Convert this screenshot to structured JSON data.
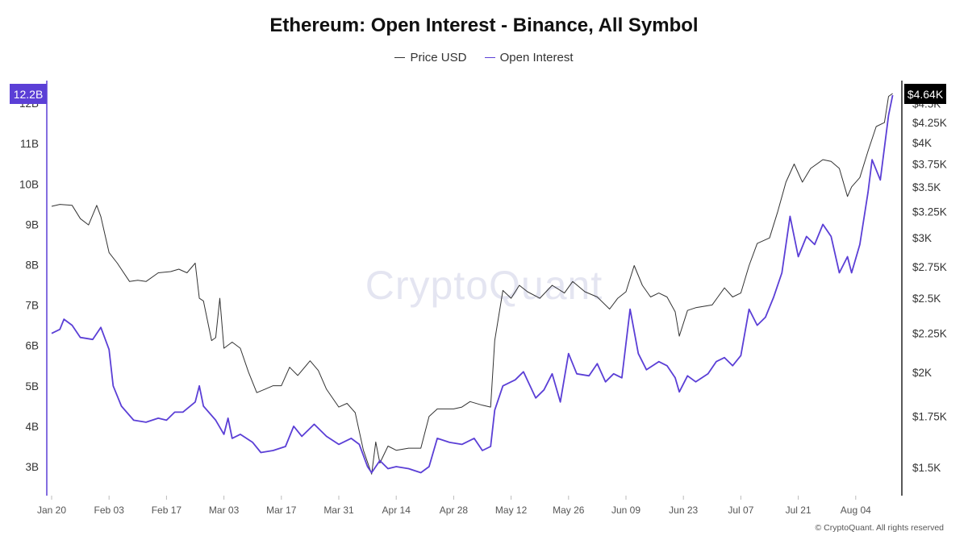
{
  "chart_data": {
    "type": "line",
    "title": "Ethereum: Open Interest - Binance, All Symbol",
    "legend_position": "top-center",
    "grid": false,
    "x_ticks": [
      "Jan 20",
      "Feb 03",
      "Feb 17",
      "Mar 03",
      "Mar 17",
      "Mar 31",
      "Apr 14",
      "Apr 28",
      "May 12",
      "May 26",
      "Jun 09",
      "Jun 23",
      "Jul 07",
      "Jul 21",
      "Aug 04"
    ],
    "x_range": [
      "2025-01-20",
      "2025-08-13"
    ],
    "y_left": {
      "ticks": [
        "3B",
        "4B",
        "5B",
        "6B",
        "7B",
        "8B",
        "9B",
        "10B",
        "11B",
        "12B"
      ],
      "range": [
        2.3,
        12.55
      ],
      "unit": "B"
    },
    "y_right": {
      "ticks": [
        "$1.5K",
        "$1.75K",
        "$2K",
        "$2.25K",
        "$2.5K",
        "$2.75K",
        "$3K",
        "$3.25K",
        "$3.5K",
        "$3.75K",
        "$4K",
        "$4.25K",
        "$4.5K"
      ],
      "scale": "log",
      "range": [
        1410,
        4800
      ]
    },
    "badges": {
      "left_value": "12.2B",
      "right_value": "$4.64K"
    },
    "series": [
      {
        "name": "Price USD",
        "color": "#333333",
        "axis": "right",
        "points": [
          [
            "2025-01-20",
            3300
          ],
          [
            "2025-01-22",
            3320
          ],
          [
            "2025-01-25",
            3310
          ],
          [
            "2025-01-27",
            3180
          ],
          [
            "2025-01-29",
            3120
          ],
          [
            "2025-01-31",
            3310
          ],
          [
            "2025-02-01",
            3200
          ],
          [
            "2025-02-03",
            2870
          ],
          [
            "2025-02-05",
            2780
          ],
          [
            "2025-02-08",
            2630
          ],
          [
            "2025-02-10",
            2640
          ],
          [
            "2025-02-12",
            2630
          ],
          [
            "2025-02-15",
            2700
          ],
          [
            "2025-02-18",
            2710
          ],
          [
            "2025-02-20",
            2730
          ],
          [
            "2025-02-22",
            2700
          ],
          [
            "2025-02-24",
            2780
          ],
          [
            "2025-02-25",
            2500
          ],
          [
            "2025-02-26",
            2480
          ],
          [
            "2025-02-28",
            2200
          ],
          [
            "2025-03-01",
            2220
          ],
          [
            "2025-03-02",
            2500
          ],
          [
            "2025-03-03",
            2150
          ],
          [
            "2025-03-05",
            2190
          ],
          [
            "2025-03-07",
            2150
          ],
          [
            "2025-03-09",
            2000
          ],
          [
            "2025-03-11",
            1880
          ],
          [
            "2025-03-13",
            1900
          ],
          [
            "2025-03-15",
            1920
          ],
          [
            "2025-03-17",
            1920
          ],
          [
            "2025-03-19",
            2030
          ],
          [
            "2025-03-21",
            1980
          ],
          [
            "2025-03-24",
            2070
          ],
          [
            "2025-03-26",
            2010
          ],
          [
            "2025-03-28",
            1900
          ],
          [
            "2025-03-31",
            1800
          ],
          [
            "2025-04-02",
            1820
          ],
          [
            "2025-04-04",
            1770
          ],
          [
            "2025-04-06",
            1580
          ],
          [
            "2025-04-08",
            1470
          ],
          [
            "2025-04-09",
            1620
          ],
          [
            "2025-04-10",
            1520
          ],
          [
            "2025-04-12",
            1600
          ],
          [
            "2025-04-14",
            1580
          ],
          [
            "2025-04-17",
            1590
          ],
          [
            "2025-04-20",
            1590
          ],
          [
            "2025-04-22",
            1750
          ],
          [
            "2025-04-24",
            1790
          ],
          [
            "2025-04-28",
            1790
          ],
          [
            "2025-04-30",
            1800
          ],
          [
            "2025-05-02",
            1830
          ],
          [
            "2025-05-05",
            1810
          ],
          [
            "2025-05-07",
            1800
          ],
          [
            "2025-05-08",
            2200
          ],
          [
            "2025-05-10",
            2560
          ],
          [
            "2025-05-12",
            2500
          ],
          [
            "2025-05-14",
            2600
          ],
          [
            "2025-05-16",
            2550
          ],
          [
            "2025-05-19",
            2500
          ],
          [
            "2025-05-22",
            2600
          ],
          [
            "2025-05-25",
            2540
          ],
          [
            "2025-05-27",
            2630
          ],
          [
            "2025-05-30",
            2550
          ],
          [
            "2025-06-02",
            2510
          ],
          [
            "2025-06-05",
            2420
          ],
          [
            "2025-06-07",
            2500
          ],
          [
            "2025-06-09",
            2550
          ],
          [
            "2025-06-11",
            2760
          ],
          [
            "2025-06-13",
            2600
          ],
          [
            "2025-06-15",
            2510
          ],
          [
            "2025-06-17",
            2540
          ],
          [
            "2025-06-19",
            2510
          ],
          [
            "2025-06-21",
            2400
          ],
          [
            "2025-06-22",
            2230
          ],
          [
            "2025-06-24",
            2410
          ],
          [
            "2025-06-26",
            2430
          ],
          [
            "2025-06-30",
            2450
          ],
          [
            "2025-07-03",
            2580
          ],
          [
            "2025-07-05",
            2510
          ],
          [
            "2025-07-07",
            2540
          ],
          [
            "2025-07-09",
            2760
          ],
          [
            "2025-07-11",
            2950
          ],
          [
            "2025-07-14",
            3000
          ],
          [
            "2025-07-16",
            3250
          ],
          [
            "2025-07-18",
            3550
          ],
          [
            "2025-07-20",
            3750
          ],
          [
            "2025-07-22",
            3550
          ],
          [
            "2025-07-24",
            3700
          ],
          [
            "2025-07-27",
            3800
          ],
          [
            "2025-07-29",
            3780
          ],
          [
            "2025-07-31",
            3700
          ],
          [
            "2025-08-02",
            3400
          ],
          [
            "2025-08-03",
            3500
          ],
          [
            "2025-08-05",
            3600
          ],
          [
            "2025-08-07",
            3900
          ],
          [
            "2025-08-09",
            4200
          ],
          [
            "2025-08-11",
            4250
          ],
          [
            "2025-08-12",
            4600
          ],
          [
            "2025-08-13",
            4640
          ]
        ]
      },
      {
        "name": "Open Interest",
        "color": "#5B3FD6",
        "axis": "left",
        "points": [
          [
            "2025-01-20",
            6.3
          ],
          [
            "2025-01-22",
            6.4
          ],
          [
            "2025-01-23",
            6.65
          ],
          [
            "2025-01-25",
            6.5
          ],
          [
            "2025-01-27",
            6.2
          ],
          [
            "2025-01-30",
            6.15
          ],
          [
            "2025-02-01",
            6.45
          ],
          [
            "2025-02-03",
            5.9
          ],
          [
            "2025-02-04",
            5.0
          ],
          [
            "2025-02-06",
            4.5
          ],
          [
            "2025-02-09",
            4.15
          ],
          [
            "2025-02-12",
            4.1
          ],
          [
            "2025-02-15",
            4.2
          ],
          [
            "2025-02-17",
            4.15
          ],
          [
            "2025-02-19",
            4.35
          ],
          [
            "2025-02-21",
            4.35
          ],
          [
            "2025-02-24",
            4.6
          ],
          [
            "2025-02-25",
            5.0
          ],
          [
            "2025-02-26",
            4.5
          ],
          [
            "2025-03-01",
            4.15
          ],
          [
            "2025-03-03",
            3.8
          ],
          [
            "2025-03-04",
            4.2
          ],
          [
            "2025-03-05",
            3.7
          ],
          [
            "2025-03-07",
            3.8
          ],
          [
            "2025-03-10",
            3.6
          ],
          [
            "2025-03-12",
            3.35
          ],
          [
            "2025-03-15",
            3.4
          ],
          [
            "2025-03-18",
            3.5
          ],
          [
            "2025-03-20",
            4.0
          ],
          [
            "2025-03-22",
            3.75
          ],
          [
            "2025-03-25",
            4.05
          ],
          [
            "2025-03-28",
            3.75
          ],
          [
            "2025-03-31",
            3.55
          ],
          [
            "2025-04-03",
            3.7
          ],
          [
            "2025-04-05",
            3.55
          ],
          [
            "2025-04-07",
            3.0
          ],
          [
            "2025-04-08",
            2.85
          ],
          [
            "2025-04-10",
            3.15
          ],
          [
            "2025-04-12",
            2.95
          ],
          [
            "2025-04-14",
            3.0
          ],
          [
            "2025-04-17",
            2.95
          ],
          [
            "2025-04-20",
            2.85
          ],
          [
            "2025-04-22",
            3.0
          ],
          [
            "2025-04-24",
            3.7
          ],
          [
            "2025-04-27",
            3.6
          ],
          [
            "2025-04-30",
            3.55
          ],
          [
            "2025-05-03",
            3.7
          ],
          [
            "2025-05-05",
            3.4
          ],
          [
            "2025-05-07",
            3.5
          ],
          [
            "2025-05-08",
            4.4
          ],
          [
            "2025-05-10",
            5.0
          ],
          [
            "2025-05-13",
            5.15
          ],
          [
            "2025-05-15",
            5.35
          ],
          [
            "2025-05-18",
            4.7
          ],
          [
            "2025-05-20",
            4.9
          ],
          [
            "2025-05-22",
            5.3
          ],
          [
            "2025-05-24",
            4.6
          ],
          [
            "2025-05-26",
            5.8
          ],
          [
            "2025-05-28",
            5.3
          ],
          [
            "2025-05-31",
            5.25
          ],
          [
            "2025-06-02",
            5.55
          ],
          [
            "2025-06-04",
            5.1
          ],
          [
            "2025-06-06",
            5.3
          ],
          [
            "2025-06-08",
            5.2
          ],
          [
            "2025-06-10",
            6.9
          ],
          [
            "2025-06-12",
            5.8
          ],
          [
            "2025-06-14",
            5.4
          ],
          [
            "2025-06-17",
            5.6
          ],
          [
            "2025-06-19",
            5.5
          ],
          [
            "2025-06-21",
            5.2
          ],
          [
            "2025-06-22",
            4.85
          ],
          [
            "2025-06-24",
            5.25
          ],
          [
            "2025-06-26",
            5.1
          ],
          [
            "2025-06-29",
            5.3
          ],
          [
            "2025-07-01",
            5.6
          ],
          [
            "2025-07-03",
            5.7
          ],
          [
            "2025-07-05",
            5.5
          ],
          [
            "2025-07-07",
            5.75
          ],
          [
            "2025-07-09",
            6.9
          ],
          [
            "2025-07-11",
            6.5
          ],
          [
            "2025-07-13",
            6.7
          ],
          [
            "2025-07-15",
            7.2
          ],
          [
            "2025-07-17",
            7.8
          ],
          [
            "2025-07-19",
            9.2
          ],
          [
            "2025-07-21",
            8.2
          ],
          [
            "2025-07-23",
            8.7
          ],
          [
            "2025-07-25",
            8.5
          ],
          [
            "2025-07-27",
            9.0
          ],
          [
            "2025-07-29",
            8.7
          ],
          [
            "2025-07-31",
            7.8
          ],
          [
            "2025-08-02",
            8.2
          ],
          [
            "2025-08-03",
            7.8
          ],
          [
            "2025-08-05",
            8.5
          ],
          [
            "2025-08-07",
            9.8
          ],
          [
            "2025-08-08",
            10.6
          ],
          [
            "2025-08-10",
            10.1
          ],
          [
            "2025-08-12",
            11.7
          ],
          [
            "2025-08-13",
            12.2
          ]
        ]
      }
    ]
  },
  "copyright": "© CryptoQuant. All rights reserved",
  "watermark": "CryptoQuant"
}
